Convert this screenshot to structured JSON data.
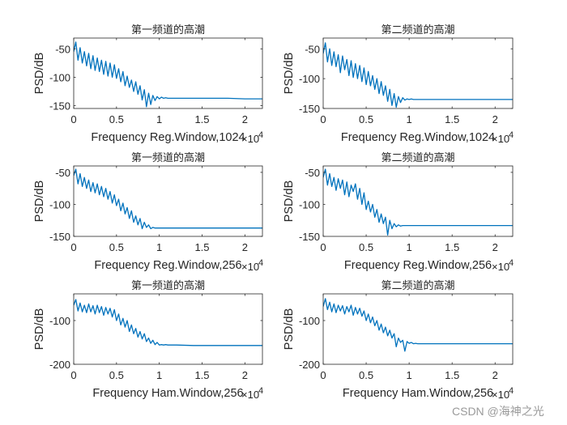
{
  "watermark": "CSDN @海神之光",
  "chart_data": [
    {
      "type": "line",
      "title": "第一频道的高潮",
      "xlabel": "Frequency   Reg.Window,1024",
      "ylabel": "PSD/dB",
      "x_exponent_label": "×10",
      "x_exponent": "4",
      "xlim": [
        0,
        22050
      ],
      "ylim": [
        -155,
        -31
      ],
      "xticks": [
        0,
        5000,
        10000,
        15000,
        20000
      ],
      "xtick_labels": [
        "0",
        "0.5",
        "1",
        "1.5",
        "2"
      ],
      "yticks": [
        -50,
        -100,
        -150
      ],
      "ytick_labels": [
        "-50",
        "-100",
        "-150"
      ],
      "color": "#0072BD",
      "values": [
        -55,
        -38,
        -70,
        -48,
        -75,
        -55,
        -80,
        -58,
        -85,
        -62,
        -88,
        -66,
        -90,
        -70,
        -95,
        -72,
        -98,
        -75,
        -100,
        -78,
        -102,
        -85,
        -108,
        -90,
        -115,
        -98,
        -118,
        -105,
        -125,
        -108,
        -130,
        -115,
        -140,
        -122,
        -152,
        -128,
        -148,
        -132,
        -141,
        -134,
        -138,
        -135,
        -137,
        -136,
        -137,
        -137,
        -137,
        -137,
        -137,
        -138,
        -138
      ]
    },
    {
      "type": "line",
      "title": "第二频道的高潮",
      "xlabel": "Frequency   Reg.Window,1024",
      "ylabel": "PSD/dB",
      "x_exponent_label": "×10",
      "x_exponent": "4",
      "xlim": [
        0,
        22050
      ],
      "ylim": [
        -150,
        -32
      ],
      "xticks": [
        0,
        5000,
        10000,
        15000,
        20000
      ],
      "xtick_labels": [
        "0",
        "0.5",
        "1",
        "1.5",
        "2"
      ],
      "yticks": [
        -50,
        -100,
        -150
      ],
      "ytick_labels": [
        "-50",
        "-100",
        "-150"
      ],
      "color": "#0072BD",
      "values": [
        -58,
        -40,
        -72,
        -50,
        -78,
        -55,
        -80,
        -60,
        -90,
        -62,
        -85,
        -68,
        -95,
        -70,
        -98,
        -75,
        -100,
        -78,
        -105,
        -82,
        -110,
        -88,
        -112,
        -95,
        -118,
        -100,
        -125,
        -105,
        -128,
        -112,
        -138,
        -118,
        -145,
        -125,
        -148,
        -130,
        -140,
        -132,
        -136,
        -134,
        -135,
        -134,
        -135,
        -135,
        -135,
        -135,
        -135,
        -135,
        -135,
        -135,
        -135
      ]
    },
    {
      "type": "line",
      "title": "第一频道的高潮",
      "xlabel": "Frequency   Reg.Window,256",
      "ylabel": "PSD/dB",
      "x_exponent_label": "×10",
      "x_exponent": "4",
      "xlim": [
        0,
        22050
      ],
      "ylim": [
        -150,
        -40
      ],
      "xticks": [
        0,
        5000,
        10000,
        15000,
        20000
      ],
      "xtick_labels": [
        "0",
        "0.5",
        "1",
        "1.5",
        "2"
      ],
      "yticks": [
        -50,
        -100,
        -150
      ],
      "ytick_labels": [
        "-50",
        "-100",
        "-150"
      ],
      "color": "#0072BD",
      "values": [
        -55,
        -45,
        -68,
        -52,
        -72,
        -58,
        -75,
        -62,
        -80,
        -66,
        -82,
        -68,
        -85,
        -72,
        -88,
        -75,
        -92,
        -80,
        -98,
        -85,
        -102,
        -92,
        -110,
        -98,
        -115,
        -105,
        -122,
        -110,
        -128,
        -118,
        -132,
        -122,
        -138,
        -128,
        -136,
        -132,
        -138,
        -136,
        -137,
        -137,
        -137,
        -137,
        -137,
        -137,
        -137,
        -137,
        -137,
        -137,
        -137,
        -137,
        -137
      ]
    },
    {
      "type": "line",
      "title": "第二频道的高潮",
      "xlabel": "Frequency   Reg.Window,256",
      "ylabel": "PSD/dB",
      "x_exponent_label": "×10",
      "x_exponent": "4",
      "xlim": [
        0,
        22050
      ],
      "ylim": [
        -150,
        -40
      ],
      "xticks": [
        0,
        5000,
        10000,
        15000,
        20000
      ],
      "xtick_labels": [
        "0",
        "0.5",
        "1",
        "1.5",
        "2"
      ],
      "yticks": [
        -50,
        -100,
        -150
      ],
      "ytick_labels": [
        "-50",
        "-100",
        "-150"
      ],
      "color": "#0072BD",
      "values": [
        -58,
        -45,
        -70,
        -52,
        -72,
        -58,
        -78,
        -60,
        -75,
        -62,
        -85,
        -65,
        -88,
        -70,
        -80,
        -68,
        -92,
        -75,
        -100,
        -82,
        -108,
        -95,
        -112,
        -100,
        -120,
        -108,
        -128,
        -115,
        -130,
        -120,
        -148,
        -125,
        -138,
        -130,
        -135,
        -132,
        -134,
        -133,
        -133,
        -133,
        -133,
        -133,
        -133,
        -133,
        -133,
        -133,
        -133,
        -133,
        -133,
        -133,
        -133
      ]
    },
    {
      "type": "line",
      "title": "第一频道的高潮",
      "xlabel": "Frequency   Ham.Window,256",
      "ylabel": "PSD/dB",
      "x_exponent_label": "×10",
      "x_exponent": "4",
      "xlim": [
        0,
        22050
      ],
      "ylim": [
        -200,
        -39
      ],
      "xticks": [
        0,
        5000,
        10000,
        15000,
        20000
      ],
      "xtick_labels": [
        "0",
        "0.5",
        "1",
        "1.5",
        "2"
      ],
      "yticks": [
        -100,
        -200
      ],
      "ytick_labels": [
        "-100",
        "-200"
      ],
      "color": "#0072BD",
      "values": [
        -65,
        -52,
        -78,
        -60,
        -80,
        -65,
        -82,
        -62,
        -80,
        -66,
        -85,
        -65,
        -82,
        -68,
        -88,
        -70,
        -85,
        -72,
        -92,
        -75,
        -100,
        -85,
        -110,
        -95,
        -115,
        -100,
        -125,
        -110,
        -130,
        -118,
        -138,
        -125,
        -142,
        -130,
        -148,
        -140,
        -152,
        -145,
        -155,
        -150,
        -156,
        -155,
        -156,
        -155,
        -156,
        -156,
        -157,
        -157,
        -157,
        -157,
        -157
      ]
    },
    {
      "type": "line",
      "title": "第二频道的高潮",
      "xlabel": "Frequency   Ham.Window,256",
      "ylabel": "PSD/dB",
      "x_exponent_label": "×10",
      "x_exponent": "4",
      "xlim": [
        0,
        22050
      ],
      "ylim": [
        -200,
        -39
      ],
      "xticks": [
        0,
        5000,
        10000,
        15000,
        20000
      ],
      "xtick_labels": [
        "0",
        "0.5",
        "1",
        "1.5",
        "2"
      ],
      "yticks": [
        -100,
        -200
      ],
      "ytick_labels": [
        "-100",
        "-200"
      ],
      "color": "#0072BD",
      "values": [
        -68,
        -50,
        -75,
        -58,
        -80,
        -62,
        -82,
        -65,
        -78,
        -66,
        -85,
        -68,
        -80,
        -65,
        -88,
        -70,
        -85,
        -72,
        -90,
        -78,
        -100,
        -85,
        -105,
        -92,
        -112,
        -100,
        -122,
        -108,
        -128,
        -115,
        -135,
        -122,
        -140,
        -130,
        -160,
        -140,
        -150,
        -145,
        -170,
        -148,
        -152,
        -150,
        -153,
        -152,
        -153,
        -153,
        -153,
        -153,
        -153,
        -153,
        -153
      ]
    }
  ],
  "x_samples": [
    0,
    250,
    500,
    750,
    1000,
    1250,
    1500,
    1750,
    2000,
    2250,
    2500,
    2750,
    3000,
    3250,
    3500,
    3750,
    4000,
    4250,
    4500,
    4750,
    5000,
    5250,
    5500,
    5750,
    6000,
    6250,
    6500,
    6750,
    7000,
    7250,
    7500,
    7750,
    8000,
    8250,
    8500,
    8750,
    9000,
    9250,
    9500,
    9750,
    10000,
    10250,
    10500,
    10750,
    11000,
    12000,
    14000,
    16000,
    18000,
    20000,
    22050
  ]
}
